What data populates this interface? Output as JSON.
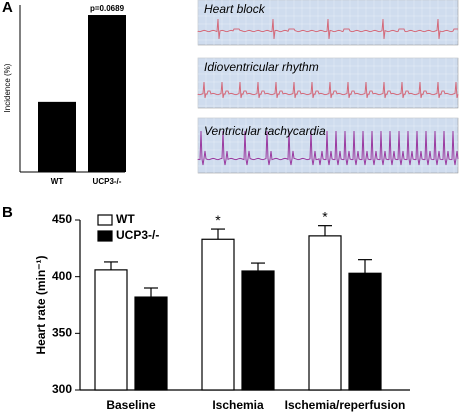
{
  "panel_labels": [
    "A",
    "B"
  ],
  "ecg_traces": [
    "Heart block",
    "Idioventricular rhythm",
    "Ventricular tachycardia"
  ],
  "chart_data": [
    {
      "type": "bar",
      "ylabel": "Incidence (%)",
      "categories": [
        "WT",
        "UCP3-/-"
      ],
      "values": [
        21,
        47
      ],
      "color": "#000000",
      "ylim": [
        0,
        50
      ],
      "annotation": "p=0.0689"
    },
    {
      "type": "grouped-bar",
      "ylabel": "Heart rate (min⁻¹)",
      "categories": [
        "Baseline",
        "Ischemia",
        "Ischemia/reperfusion"
      ],
      "series": [
        {
          "name": "WT",
          "color": "#ffffff",
          "values": [
            406,
            433,
            436
          ],
          "errors": [
            7,
            9,
            9
          ]
        },
        {
          "name": "UCP3-/-",
          "color": "#000000",
          "values": [
            382,
            405,
            403
          ],
          "errors": [
            8,
            7,
            12
          ]
        }
      ],
      "markers": [
        null,
        "*",
        "*"
      ],
      "ylim": [
        300,
        450
      ],
      "yticks": [
        300,
        350,
        400,
        450
      ]
    }
  ]
}
